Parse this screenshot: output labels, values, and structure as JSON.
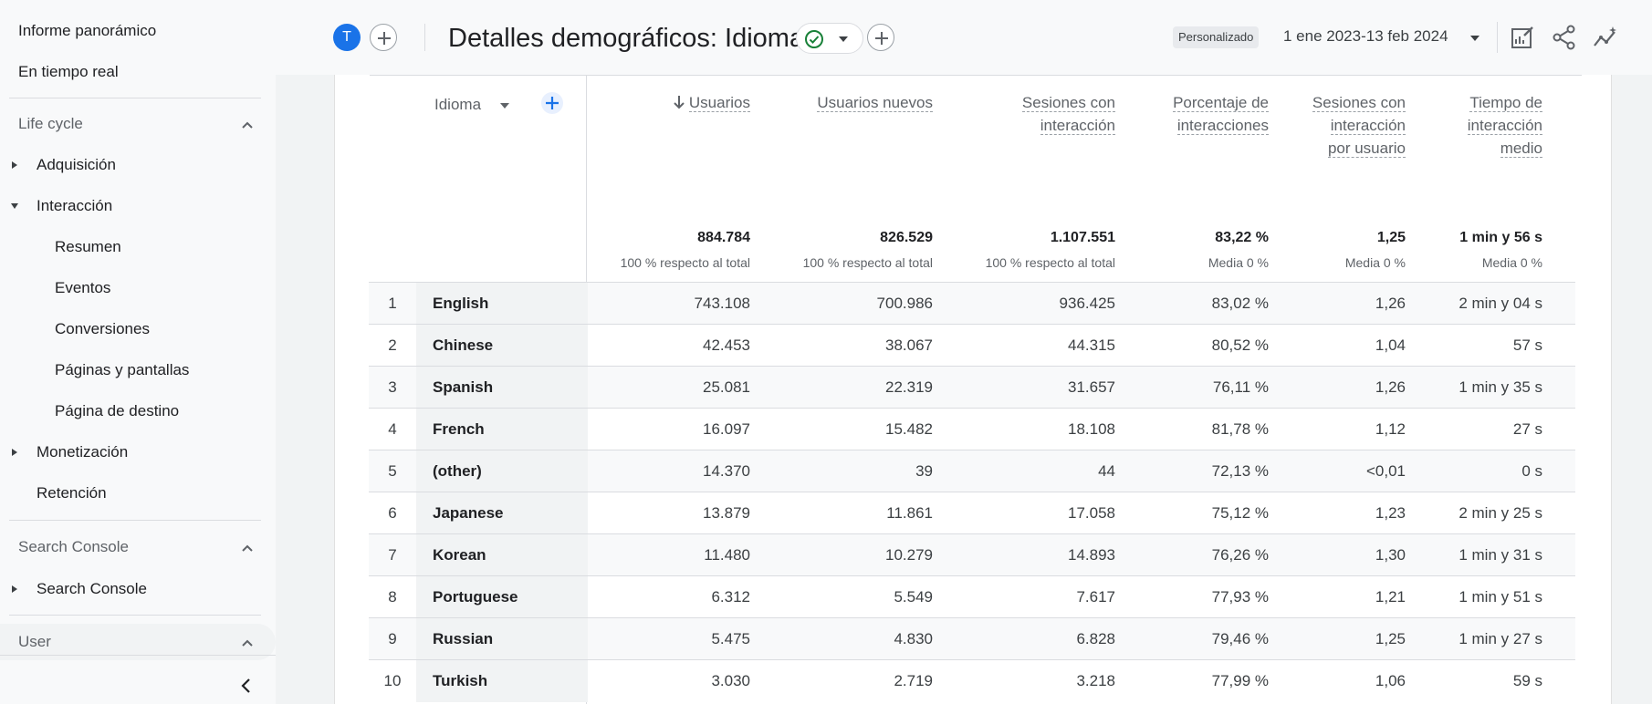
{
  "sidebar": {
    "top_items": [
      "Informe panorámico",
      "En tiempo real"
    ],
    "lifecycle": {
      "title": "Life cycle",
      "adquisicion": "Adquisición",
      "interaccion": "Interacción",
      "sub": [
        "Resumen",
        "Eventos",
        "Conversiones",
        "Páginas y pantallas",
        "Página de destino"
      ],
      "monetizacion": "Monetización",
      "retencion": "Retención"
    },
    "search_console": {
      "title": "Search Console",
      "item": "Search Console"
    },
    "user": {
      "title": "User"
    }
  },
  "header": {
    "avatar_letter": "T",
    "title": "Detalles demográficos: Idioma",
    "custom_label": "Personalizado",
    "date_range": "1 ene 2023-13 feb 2024"
  },
  "table": {
    "dimension": "Idioma",
    "columns": [
      {
        "label": "Usuarios",
        "total": "884.784",
        "sub": "100 % respecto al total"
      },
      {
        "label": "Usuarios nuevos",
        "total": "826.529",
        "sub": "100 % respecto al total"
      },
      {
        "label": "Sesiones con interacción",
        "total": "1.107.551",
        "sub": "100 % respecto al total"
      },
      {
        "label": "Porcentaje de interacciones",
        "total": "83,22 %",
        "sub": "Media 0 %"
      },
      {
        "label": "Sesiones con interacción por usuario",
        "total": "1,25",
        "sub": "Media 0 %"
      },
      {
        "label": "Tiempo de interacción medio",
        "total": "1 min y 56 s",
        "sub": "Media 0 %"
      }
    ],
    "rows": [
      {
        "idx": "1",
        "name": "English",
        "v": [
          "743.108",
          "700.986",
          "936.425",
          "83,02 %",
          "1,26",
          "2 min y 04 s"
        ]
      },
      {
        "idx": "2",
        "name": "Chinese",
        "v": [
          "42.453",
          "38.067",
          "44.315",
          "80,52 %",
          "1,04",
          "57 s"
        ]
      },
      {
        "idx": "3",
        "name": "Spanish",
        "v": [
          "25.081",
          "22.319",
          "31.657",
          "76,11 %",
          "1,26",
          "1 min y 35 s"
        ]
      },
      {
        "idx": "4",
        "name": "French",
        "v": [
          "16.097",
          "15.482",
          "18.108",
          "81,78 %",
          "1,12",
          "27 s"
        ]
      },
      {
        "idx": "5",
        "name": "(other)",
        "v": [
          "14.370",
          "39",
          "44",
          "72,13 %",
          "<0,01",
          "0 s"
        ]
      },
      {
        "idx": "6",
        "name": "Japanese",
        "v": [
          "13.879",
          "11.861",
          "17.058",
          "75,12 %",
          "1,23",
          "2 min y 25 s"
        ]
      },
      {
        "idx": "7",
        "name": "Korean",
        "v": [
          "11.480",
          "10.279",
          "14.893",
          "76,26 %",
          "1,30",
          "1 min y 31 s"
        ]
      },
      {
        "idx": "8",
        "name": "Portuguese",
        "v": [
          "6.312",
          "5.549",
          "7.617",
          "77,93 %",
          "1,21",
          "1 min y 51 s"
        ]
      },
      {
        "idx": "9",
        "name": "Russian",
        "v": [
          "5.475",
          "4.830",
          "6.828",
          "79,46 %",
          "1,25",
          "1 min y 27 s"
        ]
      },
      {
        "idx": "10",
        "name": "Turkish",
        "v": [
          "3.030",
          "2.719",
          "3.218",
          "77,99 %",
          "1,06",
          "59 s"
        ]
      }
    ]
  }
}
